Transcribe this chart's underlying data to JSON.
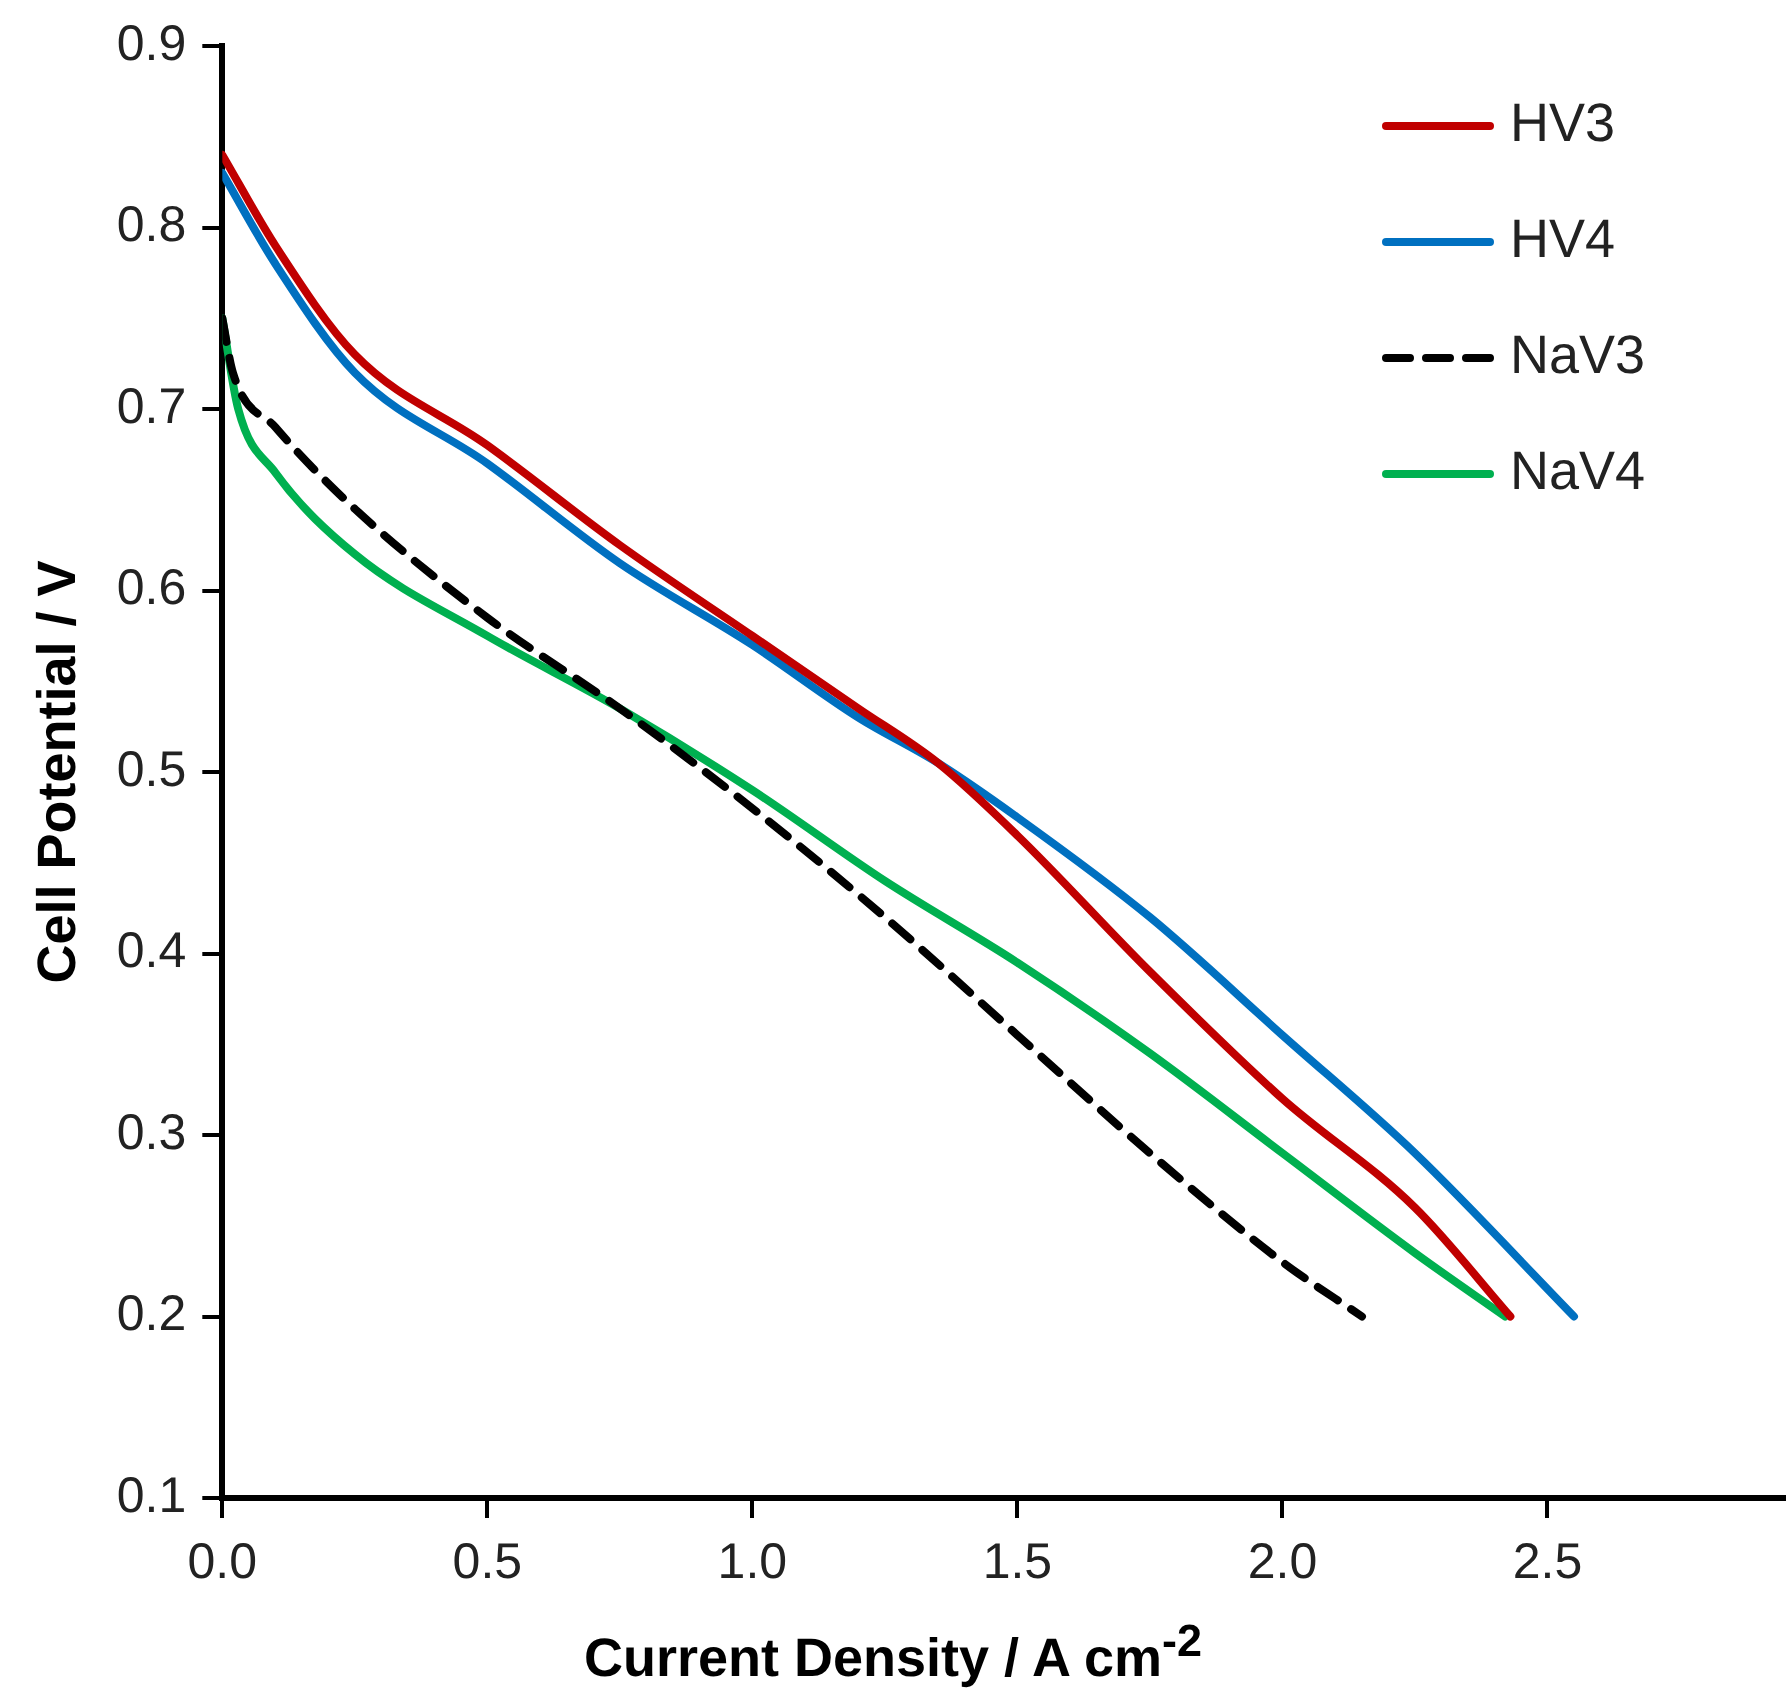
{
  "chart_data": {
    "type": "line",
    "xlabel": "Current Density / A cm$^{-2}$",
    "ylabel": "Cell Potential / V",
    "xlim": [
      0,
      2.95
    ],
    "xticks": [
      {
        "value": 0,
        "label": "0.0"
      },
      {
        "value": 0.5,
        "label": "0.5"
      },
      {
        "value": 1,
        "label": "1.0"
      },
      {
        "value": 1.5,
        "label": "1.5"
      },
      {
        "value": 2,
        "label": "2.0"
      },
      {
        "value": 2.5,
        "label": "2.5"
      }
    ],
    "ylim": [
      0.1,
      0.9
    ],
    "yticks": [
      0.1,
      0.2,
      0.3,
      0.4,
      0.5,
      0.6,
      0.7,
      0.8,
      0.9
    ],
    "grid": false,
    "legend": "top right",
    "marker": "none",
    "series": [
      {
        "name": "HV3",
        "color": "#c00000",
        "line_style": "solid",
        "x": [
          0,
          0.1,
          0.25,
          0.5,
          0.75,
          1.0,
          1.2,
          1.35,
          1.5,
          1.75,
          2.0,
          2.25,
          2.43
        ],
        "values": [
          0.84,
          0.79,
          0.73,
          0.68,
          0.625,
          0.575,
          0.535,
          0.505,
          0.465,
          0.39,
          0.32,
          0.26,
          0.2
        ]
      },
      {
        "name": "HV4",
        "color": "#0070c0",
        "line_style": "solid",
        "x": [
          0,
          0.1,
          0.25,
          0.5,
          0.75,
          1.0,
          1.2,
          1.35,
          1.5,
          1.75,
          2.0,
          2.25,
          2.55
        ],
        "values": [
          0.83,
          0.78,
          0.72,
          0.67,
          0.615,
          0.57,
          0.53,
          0.505,
          0.475,
          0.42,
          0.355,
          0.29,
          0.2
        ]
      },
      {
        "name": "NaV3",
        "color": "#000000",
        "line_style": "dashed",
        "x": [
          0,
          0.02,
          0.1,
          0.25,
          0.5,
          0.75,
          1.0,
          1.25,
          1.5,
          1.75,
          2.0,
          2.15
        ],
        "values": [
          0.75,
          0.72,
          0.69,
          0.645,
          0.585,
          0.535,
          0.48,
          0.42,
          0.355,
          0.29,
          0.23,
          0.2
        ]
      },
      {
        "name": "NaV4",
        "color": "#00b050",
        "line_style": "solid",
        "x": [
          0,
          0.03,
          0.1,
          0.25,
          0.5,
          0.75,
          1.0,
          1.25,
          1.5,
          1.75,
          2.0,
          2.25,
          2.42
        ],
        "values": [
          0.75,
          0.7,
          0.665,
          0.62,
          0.575,
          0.535,
          0.49,
          0.44,
          0.395,
          0.345,
          0.29,
          0.235,
          0.2
        ]
      }
    ]
  }
}
